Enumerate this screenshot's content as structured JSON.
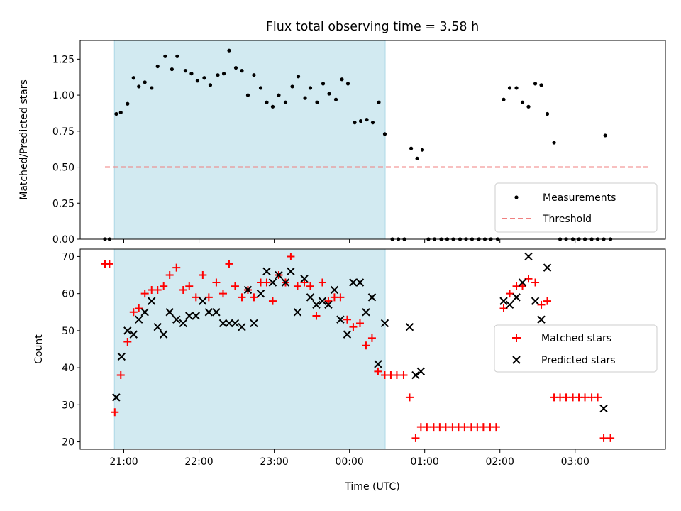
{
  "chart_data": [
    {
      "type": "scatter",
      "title": "Flux total observing time = 3.58 h",
      "xlabel": "",
      "ylabel": "Matched/Predicted stars",
      "ylim": [
        0,
        1.38
      ],
      "yticks": [
        "0.00",
        "0.25",
        "0.50",
        "0.75",
        "1.00",
        "1.25"
      ],
      "xlim_hours": [
        20.42,
        28.2
      ],
      "shaded_region_hours": [
        20.875,
        24.475
      ],
      "shade_color": "#add8e6",
      "threshold": {
        "name": "Threshold",
        "value": 0.5,
        "x_hours": [
          20.75,
          28.0
        ],
        "color": "#f08080"
      },
      "legend": "lower-right",
      "series": [
        {
          "name": "Measurements",
          "marker": "dot",
          "color": "#000000",
          "points": [
            [
              20.75,
              0.0
            ],
            [
              20.81,
              0.0
            ],
            [
              20.9,
              0.87
            ],
            [
              20.96,
              0.88
            ],
            [
              21.05,
              0.94
            ],
            [
              21.13,
              1.12
            ],
            [
              21.2,
              1.06
            ],
            [
              21.28,
              1.09
            ],
            [
              21.37,
              1.05
            ],
            [
              21.45,
              1.2
            ],
            [
              21.55,
              1.27
            ],
            [
              21.64,
              1.18
            ],
            [
              21.71,
              1.27
            ],
            [
              21.82,
              1.17
            ],
            [
              21.9,
              1.15
            ],
            [
              21.98,
              1.1
            ],
            [
              22.07,
              1.12
            ],
            [
              22.15,
              1.07
            ],
            [
              22.25,
              1.14
            ],
            [
              22.33,
              1.15
            ],
            [
              22.4,
              1.31
            ],
            [
              22.49,
              1.19
            ],
            [
              22.57,
              1.17
            ],
            [
              22.65,
              1.0
            ],
            [
              22.73,
              1.14
            ],
            [
              22.82,
              1.05
            ],
            [
              22.9,
              0.95
            ],
            [
              22.98,
              0.92
            ],
            [
              23.06,
              1.0
            ],
            [
              23.15,
              0.95
            ],
            [
              23.24,
              1.06
            ],
            [
              23.32,
              1.13
            ],
            [
              23.41,
              0.98
            ],
            [
              23.48,
              1.05
            ],
            [
              23.57,
              0.95
            ],
            [
              23.65,
              1.08
            ],
            [
              23.73,
              1.01
            ],
            [
              23.82,
              0.97
            ],
            [
              23.9,
              1.11
            ],
            [
              23.98,
              1.08
            ],
            [
              24.07,
              0.81
            ],
            [
              24.15,
              0.82
            ],
            [
              24.23,
              0.83
            ],
            [
              24.31,
              0.81
            ],
            [
              24.39,
              0.95
            ],
            [
              24.47,
              0.73
            ],
            [
              24.57,
              0.0
            ],
            [
              24.65,
              0.0
            ],
            [
              24.73,
              0.0
            ],
            [
              24.82,
              0.63
            ],
            [
              24.9,
              0.56
            ],
            [
              24.97,
              0.62
            ],
            [
              25.05,
              0.0
            ],
            [
              25.13,
              0.0
            ],
            [
              25.22,
              0.0
            ],
            [
              25.3,
              0.0
            ],
            [
              25.38,
              0.0
            ],
            [
              25.47,
              0.0
            ],
            [
              25.55,
              0.0
            ],
            [
              25.63,
              0.0
            ],
            [
              25.72,
              0.0
            ],
            [
              25.8,
              0.0
            ],
            [
              25.88,
              0.0
            ],
            [
              25.97,
              0.0
            ],
            [
              26.05,
              0.97
            ],
            [
              26.13,
              1.05
            ],
            [
              26.22,
              1.05
            ],
            [
              26.3,
              0.95
            ],
            [
              26.38,
              0.92
            ],
            [
              26.47,
              1.08
            ],
            [
              26.55,
              1.07
            ],
            [
              26.63,
              0.87
            ],
            [
              26.72,
              0.67
            ],
            [
              26.8,
              0.0
            ],
            [
              26.88,
              0.0
            ],
            [
              26.97,
              0.0
            ],
            [
              27.05,
              0.0
            ],
            [
              27.13,
              0.0
            ],
            [
              27.22,
              0.0
            ],
            [
              27.3,
              0.0
            ],
            [
              27.38,
              0.0
            ],
            [
              27.4,
              0.72
            ],
            [
              27.47,
              0.0
            ]
          ]
        }
      ]
    },
    {
      "type": "scatter",
      "title": "",
      "xlabel": "Time (UTC)",
      "ylabel": "Count",
      "ylim": [
        18,
        72
      ],
      "yticks": [
        "20",
        "30",
        "40",
        "50",
        "60",
        "70"
      ],
      "xlim_hours": [
        20.42,
        28.2
      ],
      "xticks": [
        {
          "h": 21,
          "label": "21:00"
        },
        {
          "h": 22,
          "label": "22:00"
        },
        {
          "h": 23,
          "label": "23:00"
        },
        {
          "h": 24,
          "label": "00:00"
        },
        {
          "h": 25,
          "label": "01:00"
        },
        {
          "h": 26,
          "label": "02:00"
        },
        {
          "h": 27,
          "label": "03:00"
        }
      ],
      "shaded_region_hours": [
        20.875,
        24.475
      ],
      "shade_color": "#add8e6",
      "legend": "center-right",
      "series": [
        {
          "name": "Matched stars",
          "marker": "plus",
          "color": "#ff0000",
          "points": [
            [
              20.75,
              68
            ],
            [
              20.81,
              68
            ],
            [
              20.88,
              28
            ],
            [
              20.96,
              38
            ],
            [
              21.05,
              47
            ],
            [
              21.13,
              55
            ],
            [
              21.2,
              56
            ],
            [
              21.28,
              60
            ],
            [
              21.37,
              61
            ],
            [
              21.45,
              61
            ],
            [
              21.53,
              62
            ],
            [
              21.61,
              65
            ],
            [
              21.7,
              67
            ],
            [
              21.79,
              61
            ],
            [
              21.87,
              62
            ],
            [
              21.96,
              59
            ],
            [
              22.05,
              65
            ],
            [
              22.13,
              59
            ],
            [
              22.23,
              63
            ],
            [
              22.32,
              60
            ],
            [
              22.4,
              68
            ],
            [
              22.48,
              62
            ],
            [
              22.57,
              59
            ],
            [
              22.65,
              61
            ],
            [
              22.73,
              59
            ],
            [
              22.82,
              63
            ],
            [
              22.9,
              63
            ],
            [
              22.98,
              58
            ],
            [
              23.06,
              65
            ],
            [
              23.15,
              63
            ],
            [
              23.22,
              70
            ],
            [
              23.31,
              62
            ],
            [
              23.4,
              63
            ],
            [
              23.48,
              62
            ],
            [
              23.56,
              54
            ],
            [
              23.64,
              63
            ],
            [
              23.72,
              58
            ],
            [
              23.8,
              59
            ],
            [
              23.88,
              59
            ],
            [
              23.97,
              53
            ],
            [
              24.05,
              51
            ],
            [
              24.14,
              52
            ],
            [
              24.22,
              46
            ],
            [
              24.3,
              48
            ],
            [
              24.38,
              39
            ],
            [
              24.47,
              38
            ],
            [
              24.55,
              38
            ],
            [
              24.63,
              38
            ],
            [
              24.72,
              38
            ],
            [
              24.8,
              32
            ],
            [
              24.88,
              21
            ],
            [
              24.95,
              24
            ],
            [
              25.03,
              24
            ],
            [
              25.12,
              24
            ],
            [
              25.2,
              24
            ],
            [
              25.28,
              24
            ],
            [
              25.37,
              24
            ],
            [
              25.45,
              24
            ],
            [
              25.53,
              24
            ],
            [
              25.62,
              24
            ],
            [
              25.7,
              24
            ],
            [
              25.78,
              24
            ],
            [
              25.87,
              24
            ],
            [
              25.95,
              24
            ],
            [
              26.05,
              56
            ],
            [
              26.13,
              60
            ],
            [
              26.22,
              62
            ],
            [
              26.3,
              62
            ],
            [
              26.38,
              64
            ],
            [
              26.47,
              63
            ],
            [
              26.55,
              57
            ],
            [
              26.63,
              58
            ],
            [
              26.72,
              32
            ],
            [
              26.8,
              32
            ],
            [
              26.88,
              32
            ],
            [
              26.97,
              32
            ],
            [
              27.05,
              32
            ],
            [
              27.13,
              32
            ],
            [
              27.22,
              32
            ],
            [
              27.3,
              32
            ],
            [
              27.38,
              21
            ],
            [
              27.47,
              21
            ]
          ]
        },
        {
          "name": "Predicted stars",
          "marker": "x",
          "color": "#000000",
          "points": [
            [
              20.9,
              32
            ],
            [
              20.97,
              43
            ],
            [
              21.05,
              50
            ],
            [
              21.13,
              49
            ],
            [
              21.2,
              53
            ],
            [
              21.28,
              55
            ],
            [
              21.37,
              58
            ],
            [
              21.45,
              51
            ],
            [
              21.53,
              49
            ],
            [
              21.61,
              55
            ],
            [
              21.7,
              53
            ],
            [
              21.79,
              52
            ],
            [
              21.87,
              54
            ],
            [
              21.96,
              54
            ],
            [
              22.05,
              58
            ],
            [
              22.13,
              55
            ],
            [
              22.23,
              55
            ],
            [
              22.32,
              52
            ],
            [
              22.4,
              52
            ],
            [
              22.48,
              52
            ],
            [
              22.57,
              51
            ],
            [
              22.65,
              61
            ],
            [
              22.73,
              52
            ],
            [
              22.82,
              60
            ],
            [
              22.9,
              66
            ],
            [
              22.98,
              63
            ],
            [
              23.06,
              65
            ],
            [
              23.15,
              63
            ],
            [
              23.22,
              66
            ],
            [
              23.31,
              55
            ],
            [
              23.4,
              64
            ],
            [
              23.48,
              59
            ],
            [
              23.56,
              57
            ],
            [
              23.64,
              58
            ],
            [
              23.72,
              57
            ],
            [
              23.8,
              61
            ],
            [
              23.88,
              53
            ],
            [
              23.97,
              49
            ],
            [
              24.05,
              63
            ],
            [
              24.14,
              63
            ],
            [
              24.22,
              55
            ],
            [
              24.3,
              59
            ],
            [
              24.38,
              41
            ],
            [
              24.47,
              52
            ],
            [
              24.8,
              51
            ],
            [
              24.88,
              38
            ],
            [
              24.95,
              39
            ],
            [
              26.05,
              58
            ],
            [
              26.13,
              57
            ],
            [
              26.22,
              59
            ],
            [
              26.3,
              63
            ],
            [
              26.38,
              70
            ],
            [
              26.47,
              58
            ],
            [
              26.55,
              53
            ],
            [
              26.63,
              67
            ],
            [
              27.38,
              29
            ]
          ]
        }
      ]
    }
  ]
}
